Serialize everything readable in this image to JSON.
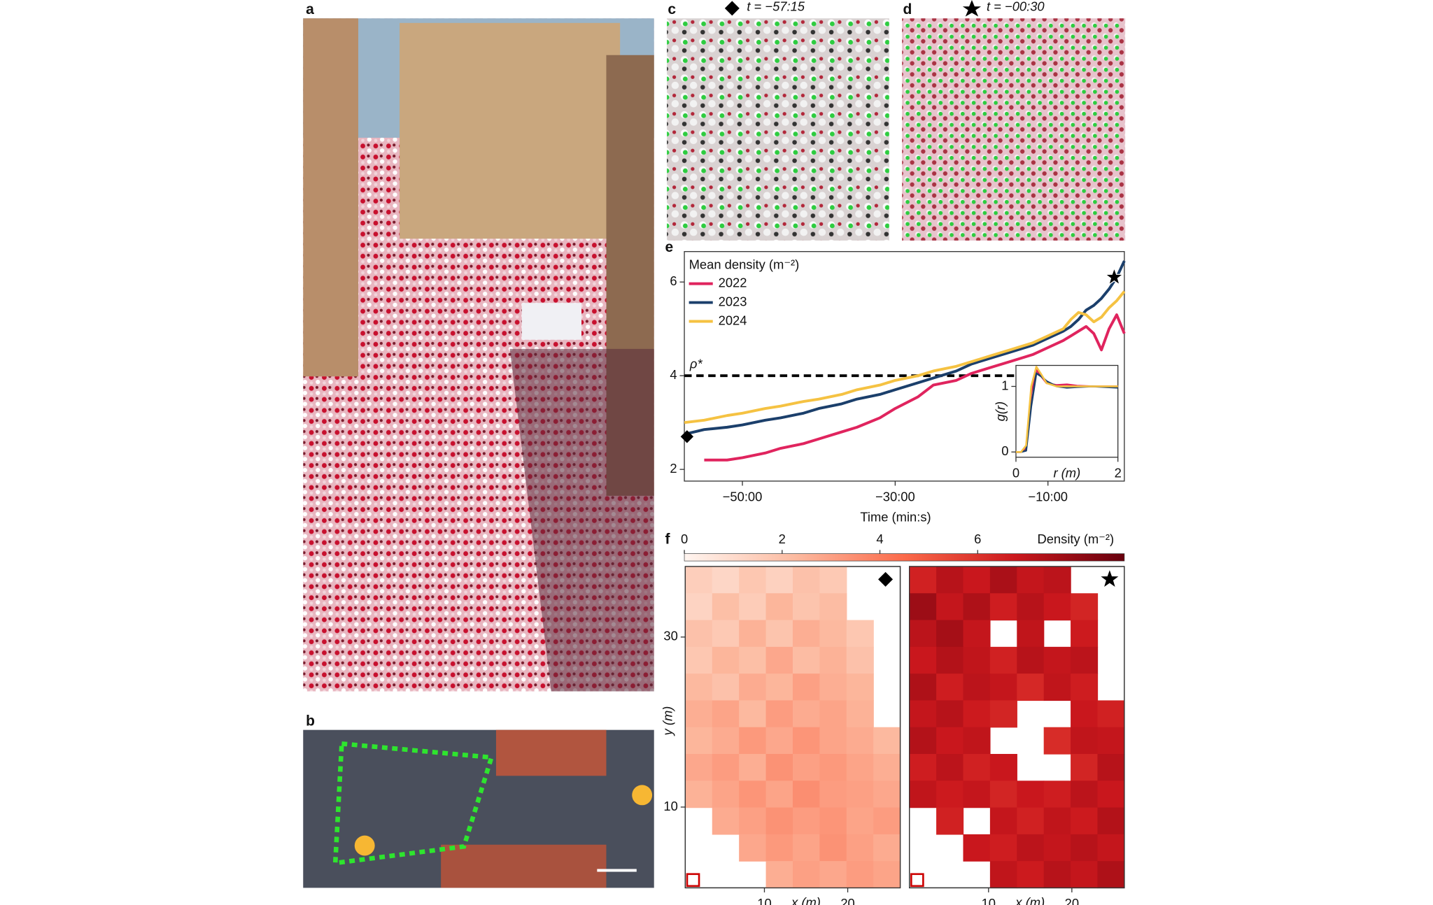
{
  "panels": {
    "a": {
      "label": "a"
    },
    "b": {
      "label": "b"
    },
    "c": {
      "label": "c",
      "caption": "t = −57:15"
    },
    "d": {
      "label": "d",
      "caption": "t = −00:30"
    }
  },
  "chart_data": [
    {
      "type": "line",
      "label": "e",
      "legend_title": "Mean density (m⁻²)",
      "xlabel": "Time (min:s)",
      "x": [
        -57.6,
        -55,
        -52,
        -50,
        -47,
        -45,
        -42,
        -40,
        -37,
        -35,
        -32,
        -30,
        -27,
        -25,
        -22,
        -20,
        -17,
        -15,
        -12,
        -10,
        -8,
        -7,
        -6,
        -5,
        -4,
        -3,
        -2,
        -1,
        0
      ],
      "series": [
        {
          "name": "2022",
          "color": "#e0245e",
          "values": [
            null,
            2.2,
            2.2,
            2.25,
            2.35,
            2.45,
            2.55,
            2.65,
            2.8,
            2.9,
            3.1,
            3.3,
            3.55,
            3.8,
            3.9,
            4.05,
            4.2,
            4.3,
            4.45,
            4.6,
            4.75,
            4.85,
            4.95,
            5.05,
            4.9,
            4.55,
            5.0,
            5.3,
            4.9
          ]
        },
        {
          "name": "2023",
          "color": "#1b3f6b",
          "values": [
            2.75,
            2.85,
            2.9,
            2.95,
            3.05,
            3.1,
            3.2,
            3.3,
            3.4,
            3.5,
            3.6,
            3.7,
            3.85,
            3.95,
            4.1,
            4.25,
            4.4,
            4.5,
            4.65,
            4.8,
            4.95,
            5.05,
            5.2,
            5.4,
            5.5,
            5.65,
            5.85,
            6.1,
            6.45
          ]
        },
        {
          "name": "2024",
          "color": "#f5c242",
          "values": [
            3.0,
            3.05,
            3.15,
            3.2,
            3.3,
            3.35,
            3.45,
            3.5,
            3.6,
            3.7,
            3.8,
            3.9,
            4.0,
            4.1,
            4.2,
            4.3,
            4.45,
            4.55,
            4.7,
            4.85,
            5.0,
            5.2,
            5.35,
            5.3,
            5.15,
            5.25,
            5.45,
            5.6,
            5.8
          ]
        }
      ],
      "threshold": {
        "value": 4,
        "label": "ρ*"
      },
      "xlim": [
        -57.6,
        0
      ],
      "ylim": [
        1.75,
        6.65
      ],
      "xticks": [
        {
          "value": -50,
          "label": "−50:00"
        },
        {
          "value": -30,
          "label": "−30:00"
        },
        {
          "value": -10,
          "label": "−10:00"
        }
      ],
      "yticks": [
        2,
        4,
        6
      ]
    },
    {
      "type": "line",
      "xlabel": "r (m)",
      "ylabel": "g(r)",
      "x": [
        0,
        0.1,
        0.2,
        0.3,
        0.4,
        0.5,
        0.6,
        0.8,
        1.0,
        1.2,
        1.5,
        2.0
      ],
      "series": [
        {
          "color": "#e0245e",
          "values": [
            0,
            0,
            0.05,
            0.9,
            1.25,
            1.15,
            1.05,
            1.02,
            1.03,
            1.01,
            1.0,
            1.0
          ]
        },
        {
          "color": "#1b3f6b",
          "values": [
            0,
            0,
            0.02,
            0.7,
            1.2,
            1.15,
            1.08,
            1.0,
            0.98,
            0.99,
            1.0,
            0.98
          ]
        },
        {
          "color": "#f5c242",
          "values": [
            0,
            0,
            0.1,
            1.0,
            1.3,
            1.18,
            1.05,
            1.0,
            1.0,
            1.0,
            1.0,
            1.0
          ]
        }
      ],
      "xlim": [
        0,
        2
      ],
      "ylim": [
        -0.08,
        1.32
      ],
      "xticks": [
        0,
        2
      ],
      "yticks": [
        0,
        1
      ]
    },
    {
      "type": "heatmap",
      "label": "f",
      "xlabel": "x (m)",
      "ylabel": "y (m)",
      "colorbar": {
        "label": "Density (m⁻²)",
        "ticks": [
          0,
          2,
          4,
          6
        ]
      },
      "zlim": [
        0,
        9
      ],
      "xlim": [
        0.5,
        26.3
      ],
      "ylim": [
        0.5,
        38.3
      ],
      "xticks": [
        10,
        20
      ],
      "yticks": [
        10,
        30
      ],
      "z": [
        [
          1.5,
          1.2,
          1.8,
          1.4,
          2.0,
          1.7,
          null,
          null
        ],
        [
          1.3,
          2.1,
          1.6,
          2.4,
          1.9,
          2.2,
          null,
          null
        ],
        [
          2.0,
          1.7,
          2.5,
          1.9,
          2.6,
          2.3,
          1.8,
          null
        ],
        [
          1.8,
          2.4,
          2.1,
          2.8,
          2.2,
          2.5,
          2.0,
          null
        ],
        [
          2.3,
          2.0,
          2.7,
          2.4,
          3.0,
          2.6,
          2.4,
          null
        ],
        [
          2.6,
          2.9,
          2.3,
          3.1,
          2.7,
          2.9,
          2.5,
          null
        ],
        [
          2.4,
          2.7,
          3.2,
          2.8,
          3.3,
          2.9,
          2.7,
          2.3
        ],
        [
          2.8,
          3.1,
          2.6,
          3.4,
          3.0,
          3.2,
          2.9,
          2.6
        ],
        [
          2.5,
          2.9,
          3.3,
          2.9,
          3.5,
          3.1,
          3.0,
          2.8
        ],
        [
          null,
          2.7,
          3.0,
          3.4,
          3.1,
          3.3,
          2.9,
          3.1
        ],
        [
          null,
          null,
          2.8,
          3.2,
          2.9,
          3.4,
          3.0,
          2.7
        ],
        [
          null,
          null,
          null,
          2.6,
          3.0,
          2.8,
          3.1,
          2.9
        ]
      ]
    },
    {
      "type": "heatmap",
      "xlabel": "x (m)",
      "zlim": [
        0,
        9
      ],
      "xlim": [
        0.5,
        26.3
      ],
      "ylim": [
        0.5,
        38.3
      ],
      "xticks": [
        10,
        20
      ],
      "z": [
        [
          6.5,
          7.2,
          6.8,
          7.5,
          6.9,
          7.1,
          null,
          null
        ],
        [
          7.8,
          6.9,
          7.4,
          6.6,
          7.2,
          6.8,
          6.4,
          null
        ],
        [
          7.1,
          7.6,
          6.9,
          null,
          7.0,
          null,
          6.7,
          null
        ],
        [
          6.8,
          7.3,
          7.0,
          6.5,
          7.2,
          6.9,
          7.1,
          null
        ],
        [
          7.4,
          6.6,
          7.1,
          6.9,
          6.3,
          7.0,
          6.6,
          null
        ],
        [
          6.9,
          7.2,
          6.7,
          6.4,
          null,
          null,
          6.8,
          6.5
        ],
        [
          7.3,
          6.8,
          7.0,
          null,
          null,
          6.2,
          7.0,
          6.9
        ],
        [
          6.6,
          7.1,
          6.5,
          6.8,
          null,
          null,
          6.4,
          7.2
        ],
        [
          7.0,
          6.7,
          6.9,
          6.4,
          6.8,
          6.6,
          7.1,
          6.8
        ],
        [
          null,
          6.5,
          null,
          6.9,
          6.5,
          7.0,
          6.7,
          7.3
        ],
        [
          null,
          null,
          6.8,
          6.6,
          7.1,
          6.9,
          7.2,
          6.9
        ],
        [
          null,
          null,
          null,
          7.0,
          6.7,
          7.2,
          6.9,
          7.4
        ]
      ]
    }
  ]
}
